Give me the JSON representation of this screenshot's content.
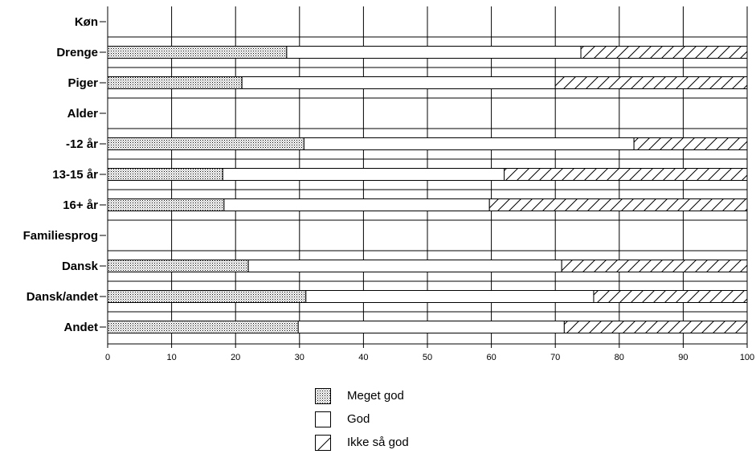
{
  "chart_data": {
    "type": "bar",
    "orientation": "horizontal",
    "stacked": true,
    "categories": [
      "Køn",
      "Drenge",
      "Piger",
      "Alder",
      "-12 år",
      "13-15 år",
      "16+ år",
      "Familiesprog",
      "Dansk",
      "Dansk/andet",
      "Andet"
    ],
    "group_headers": [
      "Køn",
      "Alder",
      "Familiesprog"
    ],
    "series": [
      {
        "name": "Meget god",
        "pattern": "dots",
        "values": [
          null,
          28,
          21,
          null,
          30.7,
          18,
          18.2,
          null,
          22,
          31,
          29.8
        ]
      },
      {
        "name": "God",
        "pattern": "solid-white",
        "values": [
          null,
          46,
          49,
          null,
          51.6,
          44,
          41.5,
          null,
          49,
          45,
          41.6
        ]
      },
      {
        "name": "Ikke så god",
        "pattern": "diagonal-hatch",
        "values": [
          null,
          26,
          30,
          null,
          17.7,
          38,
          40.3,
          null,
          29,
          24,
          28.6
        ]
      }
    ],
    "xlim": [
      0,
      100
    ],
    "xticks": [
      0,
      10,
      20,
      30,
      40,
      50,
      60,
      70,
      80,
      90,
      100
    ],
    "grid": "vertical",
    "legend_position": "bottom",
    "title": "",
    "xlabel": "",
    "ylabel": ""
  }
}
